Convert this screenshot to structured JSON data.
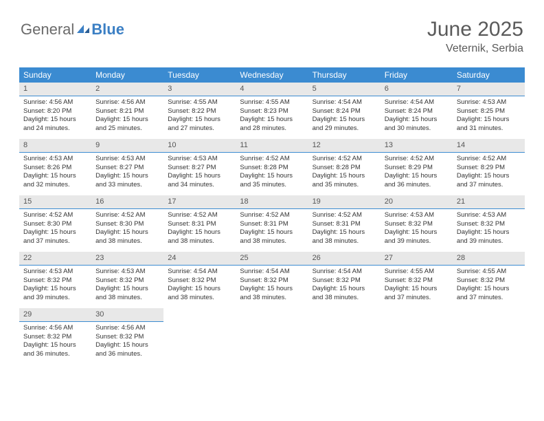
{
  "logo": {
    "text1": "General",
    "text2": "Blue"
  },
  "title": {
    "month": "June 2025",
    "location": "Veternik, Serbia"
  },
  "colors": {
    "header_bg": "#3b8bd1",
    "header_text": "#ffffff",
    "daynum_bg": "#e8e8e8",
    "daynum_border": "#3b8bd1",
    "body_text": "#333333",
    "logo_gray": "#6a6a6a",
    "logo_blue": "#3b7fc4"
  },
  "weekdays": [
    "Sunday",
    "Monday",
    "Tuesday",
    "Wednesday",
    "Thursday",
    "Friday",
    "Saturday"
  ],
  "days": [
    {
      "n": "1",
      "sr": "4:56 AM",
      "ss": "8:20 PM",
      "dl": "15 hours and 24 minutes."
    },
    {
      "n": "2",
      "sr": "4:56 AM",
      "ss": "8:21 PM",
      "dl": "15 hours and 25 minutes."
    },
    {
      "n": "3",
      "sr": "4:55 AM",
      "ss": "8:22 PM",
      "dl": "15 hours and 27 minutes."
    },
    {
      "n": "4",
      "sr": "4:55 AM",
      "ss": "8:23 PM",
      "dl": "15 hours and 28 minutes."
    },
    {
      "n": "5",
      "sr": "4:54 AM",
      "ss": "8:24 PM",
      "dl": "15 hours and 29 minutes."
    },
    {
      "n": "6",
      "sr": "4:54 AM",
      "ss": "8:24 PM",
      "dl": "15 hours and 30 minutes."
    },
    {
      "n": "7",
      "sr": "4:53 AM",
      "ss": "8:25 PM",
      "dl": "15 hours and 31 minutes."
    },
    {
      "n": "8",
      "sr": "4:53 AM",
      "ss": "8:26 PM",
      "dl": "15 hours and 32 minutes."
    },
    {
      "n": "9",
      "sr": "4:53 AM",
      "ss": "8:27 PM",
      "dl": "15 hours and 33 minutes."
    },
    {
      "n": "10",
      "sr": "4:53 AM",
      "ss": "8:27 PM",
      "dl": "15 hours and 34 minutes."
    },
    {
      "n": "11",
      "sr": "4:52 AM",
      "ss": "8:28 PM",
      "dl": "15 hours and 35 minutes."
    },
    {
      "n": "12",
      "sr": "4:52 AM",
      "ss": "8:28 PM",
      "dl": "15 hours and 35 minutes."
    },
    {
      "n": "13",
      "sr": "4:52 AM",
      "ss": "8:29 PM",
      "dl": "15 hours and 36 minutes."
    },
    {
      "n": "14",
      "sr": "4:52 AM",
      "ss": "8:29 PM",
      "dl": "15 hours and 37 minutes."
    },
    {
      "n": "15",
      "sr": "4:52 AM",
      "ss": "8:30 PM",
      "dl": "15 hours and 37 minutes."
    },
    {
      "n": "16",
      "sr": "4:52 AM",
      "ss": "8:30 PM",
      "dl": "15 hours and 38 minutes."
    },
    {
      "n": "17",
      "sr": "4:52 AM",
      "ss": "8:31 PM",
      "dl": "15 hours and 38 minutes."
    },
    {
      "n": "18",
      "sr": "4:52 AM",
      "ss": "8:31 PM",
      "dl": "15 hours and 38 minutes."
    },
    {
      "n": "19",
      "sr": "4:52 AM",
      "ss": "8:31 PM",
      "dl": "15 hours and 38 minutes."
    },
    {
      "n": "20",
      "sr": "4:53 AM",
      "ss": "8:32 PM",
      "dl": "15 hours and 39 minutes."
    },
    {
      "n": "21",
      "sr": "4:53 AM",
      "ss": "8:32 PM",
      "dl": "15 hours and 39 minutes."
    },
    {
      "n": "22",
      "sr": "4:53 AM",
      "ss": "8:32 PM",
      "dl": "15 hours and 39 minutes."
    },
    {
      "n": "23",
      "sr": "4:53 AM",
      "ss": "8:32 PM",
      "dl": "15 hours and 38 minutes."
    },
    {
      "n": "24",
      "sr": "4:54 AM",
      "ss": "8:32 PM",
      "dl": "15 hours and 38 minutes."
    },
    {
      "n": "25",
      "sr": "4:54 AM",
      "ss": "8:32 PM",
      "dl": "15 hours and 38 minutes."
    },
    {
      "n": "26",
      "sr": "4:54 AM",
      "ss": "8:32 PM",
      "dl": "15 hours and 38 minutes."
    },
    {
      "n": "27",
      "sr": "4:55 AM",
      "ss": "8:32 PM",
      "dl": "15 hours and 37 minutes."
    },
    {
      "n": "28",
      "sr": "4:55 AM",
      "ss": "8:32 PM",
      "dl": "15 hours and 37 minutes."
    },
    {
      "n": "29",
      "sr": "4:56 AM",
      "ss": "8:32 PM",
      "dl": "15 hours and 36 minutes."
    },
    {
      "n": "30",
      "sr": "4:56 AM",
      "ss": "8:32 PM",
      "dl": "15 hours and 36 minutes."
    }
  ],
  "labels": {
    "sunrise": "Sunrise:",
    "sunset": "Sunset:",
    "daylight": "Daylight:"
  },
  "layout": {
    "start_weekday": 0,
    "num_days": 30,
    "cols": 7
  }
}
